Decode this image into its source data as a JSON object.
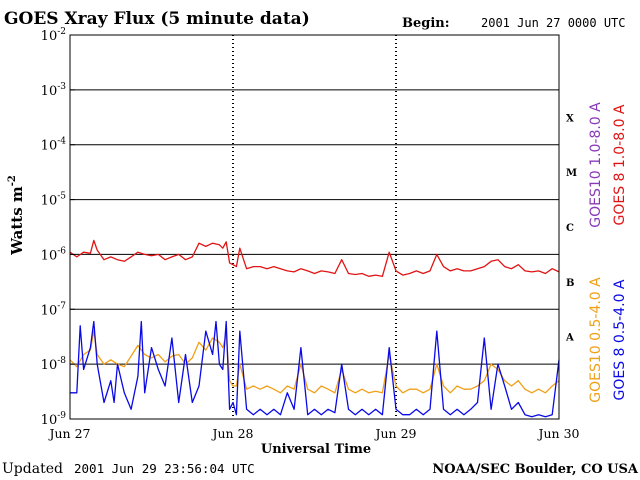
{
  "chart_data": {
    "type": "line",
    "title": "GOES Xray Flux (5 minute data)",
    "begin_label": "Begin:",
    "begin_value": "2001 Jun 27 0000 UTC",
    "xlabel": "Universal Time",
    "ylabel": "Watts m",
    "ylabel_sup": "-2",
    "yscale": "log",
    "ylim": [
      1e-09,
      0.01
    ],
    "xlim": [
      0,
      72
    ],
    "x_unit": "hours since 2001 Jun 27 00:00 UTC",
    "yticks": [
      {
        "base": "10",
        "exp": "-2"
      },
      {
        "base": "10",
        "exp": "-3"
      },
      {
        "base": "10",
        "exp": "-4"
      },
      {
        "base": "10",
        "exp": "-5"
      },
      {
        "base": "10",
        "exp": "-6"
      },
      {
        "base": "10",
        "exp": "-7"
      },
      {
        "base": "10",
        "exp": "-8"
      },
      {
        "base": "10",
        "exp": "-9"
      }
    ],
    "xticks": [
      "Jun 27",
      "Jun 28",
      "Jun 29",
      "Jun 30"
    ],
    "flare_classes": [
      "X",
      "M",
      "C",
      "B",
      "A"
    ],
    "grid": true,
    "legend": [
      "GOES10 1.0-8.0 A",
      "GOES 8 1.0-8.0 A",
      "GOES10 0.5-4.0 A",
      "GOES 8 0.5-4.0 A"
    ],
    "colors": {
      "goes10_long": "#8a3ab9",
      "goes8_long": "#e01414",
      "goes10_short": "#f0a018",
      "goes8_short": "#0a0ae6"
    },
    "series": [
      {
        "name": "GOES 8 1.0-8.0 A",
        "color": "#e01414",
        "x": [
          0,
          1,
          2,
          3,
          3.5,
          4,
          5,
          6,
          7,
          8,
          9,
          10,
          11,
          12,
          13,
          14,
          15,
          16,
          17,
          18,
          19,
          20,
          21,
          22,
          22.5,
          23,
          23.5,
          24,
          24.5,
          25,
          26,
          27,
          28,
          29,
          30,
          31,
          32,
          33,
          34,
          35,
          36,
          37,
          38,
          39,
          40,
          41,
          42,
          43,
          44,
          45,
          46,
          47,
          48,
          49,
          50,
          51,
          52,
          53,
          54,
          55,
          56,
          57,
          58,
          59,
          60,
          61,
          62,
          63,
          64,
          65,
          66,
          67,
          68,
          69,
          70,
          71,
          72
        ],
        "y": [
          1.1e-06,
          9e-07,
          1.1e-06,
          1.05e-06,
          1.8e-06,
          1.2e-06,
          8e-07,
          9e-07,
          8e-07,
          7.5e-07,
          9e-07,
          1.1e-06,
          1e-06,
          9.5e-07,
          1e-06,
          8e-07,
          9e-07,
          1e-06,
          8e-07,
          9e-07,
          1.6e-06,
          1.4e-06,
          1.6e-06,
          1.5e-06,
          1.3e-06,
          1.7e-06,
          7e-07,
          6.5e-07,
          6e-07,
          1.3e-06,
          5.5e-07,
          6e-07,
          6e-07,
          5.5e-07,
          6e-07,
          5.5e-07,
          5e-07,
          4.8e-07,
          5.5e-07,
          5e-07,
          4.5e-07,
          5e-07,
          4.8e-07,
          4.5e-07,
          8e-07,
          4.5e-07,
          4.3e-07,
          4.5e-07,
          4e-07,
          4.2e-07,
          4e-07,
          1.1e-06,
          5e-07,
          4.2e-07,
          4.5e-07,
          5e-07,
          4.5e-07,
          5e-07,
          1e-06,
          6e-07,
          5e-07,
          5.5e-07,
          5e-07,
          5e-07,
          5.5e-07,
          6e-07,
          7.5e-07,
          8e-07,
          6e-07,
          5.5e-07,
          6.5e-07,
          5e-07,
          4.8e-07,
          5e-07,
          4.5e-07,
          5.5e-07,
          4.8e-07
        ]
      },
      {
        "name": "GOES10 0.5-4.0 A",
        "color": "#f0a018",
        "x": [
          0,
          1,
          2,
          3,
          3.5,
          4,
          5,
          6,
          7,
          8,
          9,
          10,
          11,
          12,
          13,
          14,
          15,
          16,
          17,
          18,
          19,
          20,
          21,
          22,
          22.5,
          23,
          23.5,
          24,
          24.5,
          25,
          26,
          27,
          28,
          29,
          30,
          31,
          32,
          33,
          34,
          35,
          36,
          37,
          38,
          39,
          40,
          41,
          42,
          43,
          44,
          45,
          46,
          47,
          48,
          49,
          50,
          51,
          52,
          53,
          54,
          55,
          56,
          57,
          58,
          59,
          60,
          61,
          62,
          63,
          64,
          65,
          66,
          67,
          68,
          69,
          70,
          71,
          72
        ],
        "y": [
          1.2e-08,
          9e-09,
          1.5e-08,
          1.8e-08,
          4e-08,
          1.5e-08,
          1e-08,
          1.2e-08,
          1e-08,
          9e-09,
          1.4e-08,
          2.2e-08,
          1.5e-08,
          1.3e-08,
          1.5e-08,
          1.1e-08,
          1.4e-08,
          1.5e-08,
          1e-08,
          1.3e-08,
          2.5e-08,
          1.8e-08,
          3e-08,
          2.5e-08,
          2e-08,
          3.5e-08,
          5e-09,
          4e-09,
          4e-09,
          1e-08,
          3.5e-09,
          4e-09,
          3.5e-09,
          4e-09,
          3.5e-09,
          3e-09,
          4e-09,
          3.5e-09,
          1e-08,
          3.5e-09,
          3e-09,
          4e-09,
          3.5e-09,
          3e-09,
          8e-09,
          3.5e-09,
          3e-09,
          3.5e-09,
          3e-09,
          3.2e-09,
          3e-09,
          1.5e-08,
          4e-09,
          3e-09,
          3.5e-09,
          3.5e-09,
          3e-09,
          3.5e-09,
          1e-08,
          4e-09,
          3e-09,
          4e-09,
          3.5e-09,
          3.5e-09,
          4e-09,
          5e-09,
          1e-08,
          8e-09,
          5e-09,
          4e-09,
          5e-09,
          3.5e-09,
          3e-09,
          3.5e-09,
          3e-09,
          4e-09,
          5e-09
        ]
      },
      {
        "name": "GOES 8 0.5-4.0 A",
        "color": "#0a0ae6",
        "x": [
          0,
          1,
          1.5,
          2,
          3,
          3.5,
          4,
          5,
          6,
          6.5,
          7,
          8,
          9,
          10,
          10.5,
          11,
          12,
          13,
          14,
          15,
          16,
          17,
          18,
          19,
          20,
          21,
          21.5,
          22,
          22.5,
          23,
          23.5,
          24,
          24.5,
          25,
          26,
          27,
          28,
          29,
          30,
          31,
          32,
          33,
          34,
          35,
          36,
          37,
          38,
          39,
          40,
          41,
          42,
          43,
          44,
          45,
          46,
          47,
          48,
          49,
          50,
          51,
          52,
          53,
          54,
          55,
          56,
          57,
          58,
          59,
          60,
          61,
          62,
          63,
          64,
          65,
          66,
          67,
          68,
          69,
          70,
          71,
          72
        ],
        "y": [
          3e-09,
          3e-09,
          5e-08,
          8e-09,
          2e-08,
          6e-08,
          1e-08,
          2e-09,
          5e-09,
          2e-09,
          1e-08,
          3e-09,
          1.5e-09,
          6e-09,
          6e-08,
          3e-09,
          2e-08,
          8e-09,
          4e-09,
          3e-08,
          2e-09,
          1.5e-08,
          2e-09,
          4e-09,
          4e-08,
          1.5e-08,
          6e-08,
          1e-08,
          8e-09,
          6e-08,
          1.5e-09,
          2e-09,
          1.2e-09,
          4e-08,
          1.5e-09,
          1.2e-09,
          1.5e-09,
          1.2e-09,
          1.5e-09,
          1.2e-09,
          3e-09,
          1.5e-09,
          2e-08,
          1.2e-09,
          1.5e-09,
          1.2e-09,
          1.5e-09,
          1.3e-09,
          1e-08,
          1.5e-09,
          1.2e-09,
          1.5e-09,
          1.2e-09,
          1.5e-09,
          1.2e-09,
          2e-08,
          1.5e-09,
          1.2e-09,
          1.2e-09,
          1.5e-09,
          1.2e-09,
          1.5e-09,
          4e-08,
          1.5e-09,
          1.2e-09,
          1.5e-09,
          1.2e-09,
          1.5e-09,
          2e-09,
          3e-08,
          1.5e-09,
          1e-08,
          4e-09,
          1.5e-09,
          2e-09,
          1.2e-09,
          1.1e-09,
          1.2e-09,
          1.1e-09,
          1.2e-09,
          1.2e-08
        ]
      }
    ]
  },
  "footer": {
    "updated_label": "Updated",
    "updated_value": "2001 Jun 29 23:56:04 UTC",
    "credit": "NOAA/SEC Boulder, CO USA"
  }
}
